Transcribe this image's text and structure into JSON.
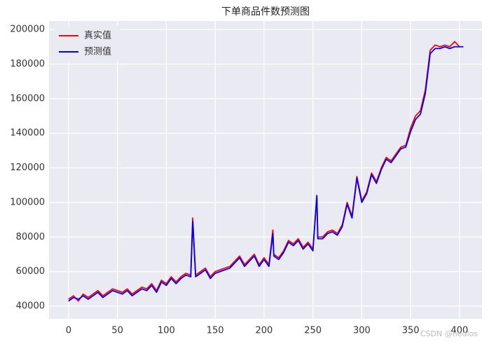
{
  "chart_data": {
    "type": "line",
    "title": "下单商品件数预测图",
    "x": [
      0,
      5,
      10,
      15,
      20,
      25,
      30,
      35,
      40,
      45,
      50,
      55,
      60,
      65,
      70,
      75,
      80,
      85,
      90,
      95,
      100,
      105,
      110,
      115,
      120,
      125,
      127,
      130,
      135,
      140,
      145,
      150,
      155,
      160,
      165,
      170,
      175,
      180,
      185,
      190,
      195,
      200,
      205,
      209,
      210,
      215,
      220,
      225,
      230,
      235,
      240,
      245,
      250,
      254,
      255,
      260,
      265,
      270,
      275,
      280,
      285,
      290,
      295,
      300,
      305,
      310,
      315,
      320,
      325,
      330,
      335,
      340,
      345,
      350,
      355,
      360,
      365,
      370,
      375,
      380,
      385,
      390,
      395,
      400,
      404
    ],
    "series": [
      {
        "name": "真实值",
        "color": "#ff0000",
        "values": [
          44000,
          46000,
          43000,
          47000,
          45000,
          47000,
          49000,
          46000,
          48000,
          50000,
          49000,
          48000,
          50000,
          47000,
          49000,
          51000,
          50000,
          53000,
          49000,
          55000,
          53000,
          57000,
          54000,
          57000,
          59000,
          58000,
          91000,
          58000,
          60000,
          62000,
          57000,
          60000,
          61000,
          62000,
          63000,
          66000,
          69000,
          64000,
          67000,
          70000,
          64000,
          68000,
          64000,
          84000,
          70000,
          68000,
          72000,
          78000,
          76000,
          79000,
          74000,
          77000,
          73000,
          103000,
          80000,
          80000,
          83000,
          84000,
          82000,
          87000,
          100000,
          92000,
          115000,
          101000,
          106000,
          117000,
          112000,
          120000,
          126000,
          124000,
          128000,
          132000,
          133000,
          143000,
          150000,
          153000,
          165000,
          188000,
          191000,
          190000,
          191000,
          190000,
          193000,
          190000,
          null
        ]
      },
      {
        "name": "预测值",
        "color": "#0000ff",
        "values": [
          43000,
          45000,
          44000,
          46000,
          44000,
          46000,
          48000,
          45000,
          47000,
          49000,
          48000,
          47000,
          49000,
          46000,
          48000,
          50000,
          49000,
          52000,
          48000,
          54000,
          52000,
          56000,
          53000,
          56000,
          58000,
          57000,
          89000,
          57000,
          59000,
          61000,
          56000,
          59000,
          60000,
          61000,
          62000,
          65000,
          68000,
          63000,
          66000,
          69000,
          63000,
          67000,
          63000,
          82000,
          69000,
          67000,
          71000,
          77000,
          75000,
          78000,
          73000,
          76000,
          72000,
          104000,
          79000,
          79000,
          82000,
          83000,
          81000,
          86000,
          99000,
          91000,
          114000,
          100000,
          105000,
          116000,
          111000,
          119000,
          125000,
          123000,
          127000,
          131000,
          132000,
          141000,
          148000,
          151000,
          163000,
          186000,
          189000,
          189000,
          190000,
          189000,
          190000,
          190000,
          190000
        ]
      }
    ],
    "xlim": [
      -20,
      423
    ],
    "ylim": [
      32700,
      204900
    ],
    "xticks": [
      0,
      50,
      100,
      150,
      200,
      250,
      300,
      350,
      400
    ],
    "yticks": [
      40000,
      60000,
      80000,
      100000,
      120000,
      140000,
      160000,
      180000,
      200000
    ],
    "grid": true,
    "legend": "upper-left",
    "background": "#eaeaf2",
    "annotation": "CSDN @hedlos"
  }
}
